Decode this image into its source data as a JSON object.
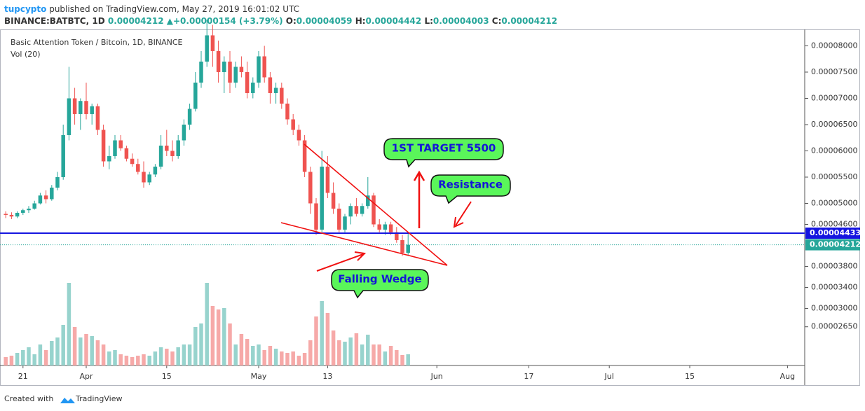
{
  "header": {
    "author": "tupcypto",
    "published": "published on TradingView.com, May 27, 2019 16:01:02 UTC",
    "symbol": "BINANCE:BATBTC, 1D",
    "last": "0.00004212",
    "arrow": "▲",
    "change": "+0.00000154 (+3.79%)",
    "o_label": "O:",
    "o": "0.00004059",
    "h_label": "H:",
    "h": "0.00004442",
    "l_label": "L:",
    "l": "0.00004003",
    "c_label": "C:",
    "c": "0.00004212"
  },
  "footer": {
    "text": "Created with",
    "brand": "TradingView"
  },
  "chart_data": {
    "type": "candlestick",
    "title": "Basic Attention Token / Bitcoin, 1D, BINANCE",
    "volume_title": "Vol (20)",
    "x": [
      "2019-03-18",
      "2019-03-19",
      "2019-03-20",
      "2019-03-21",
      "2019-03-22",
      "2019-03-23",
      "2019-03-24",
      "2019-03-25",
      "2019-03-26",
      "2019-03-27",
      "2019-03-28",
      "2019-03-29",
      "2019-03-30",
      "2019-03-31",
      "2019-04-01",
      "2019-04-02",
      "2019-04-03",
      "2019-04-04",
      "2019-04-05",
      "2019-04-06",
      "2019-04-07",
      "2019-04-08",
      "2019-04-09",
      "2019-04-10",
      "2019-04-11",
      "2019-04-12",
      "2019-04-13",
      "2019-04-14",
      "2019-04-15",
      "2019-04-16",
      "2019-04-17",
      "2019-04-18",
      "2019-04-19",
      "2019-04-20",
      "2019-04-21",
      "2019-04-22",
      "2019-04-23",
      "2019-04-24",
      "2019-04-25",
      "2019-04-26",
      "2019-04-27",
      "2019-04-28",
      "2019-04-29",
      "2019-04-30",
      "2019-05-01",
      "2019-05-02",
      "2019-05-03",
      "2019-05-04",
      "2019-05-05",
      "2019-05-06",
      "2019-05-07",
      "2019-05-08",
      "2019-05-09",
      "2019-05-10",
      "2019-05-11",
      "2019-05-12",
      "2019-05-13",
      "2019-05-14",
      "2019-05-15",
      "2019-05-16",
      "2019-05-17",
      "2019-05-18",
      "2019-05-19",
      "2019-05-20",
      "2019-05-21",
      "2019-05-22",
      "2019-05-23",
      "2019-05-24",
      "2019-05-25",
      "2019-05-26",
      "2019-05-27"
    ],
    "open": [
      4.8e-05,
      4.78e-05,
      4.75e-05,
      4.82e-05,
      4.87e-05,
      4.9e-05,
      5e-05,
      5.15e-05,
      5.08e-05,
      5.3e-05,
      5.5e-05,
      6.3e-05,
      7e-05,
      6.7e-05,
      6.95e-05,
      6.7e-05,
      6.85e-05,
      6.4e-05,
      5.8e-05,
      5.9e-05,
      6.2e-05,
      6.05e-05,
      5.85e-05,
      5.75e-05,
      5.6e-05,
      5.4e-05,
      5.55e-05,
      5.7e-05,
      6.1e-05,
      6e-05,
      5.9e-05,
      6.2e-05,
      6.5e-05,
      6.8e-05,
      7.3e-05,
      7.7e-05,
      8.2e-05,
      7.9e-05,
      7.5e-05,
      7.7e-05,
      7.3e-05,
      7.6e-05,
      7.5e-05,
      7.1e-05,
      7.3e-05,
      7.8e-05,
      7.4e-05,
      7.1e-05,
      7.2e-05,
      6.9e-05,
      6.6e-05,
      6.4e-05,
      6.2e-05,
      5.6e-05,
      5e-05,
      4.5e-05,
      5.7e-05,
      5.2e-05,
      4.9e-05,
      4.5e-05,
      4.75e-05,
      4.95e-05,
      4.8e-05,
      4.95e-05,
      5.15e-05,
      4.6e-05,
      4.5e-05,
      4.6e-05,
      4.45e-05,
      4.3e-05,
      4.059e-05
    ],
    "high": [
      4.85e-05,
      4.83e-05,
      4.85e-05,
      4.9e-05,
      4.95e-05,
      5.05e-05,
      5.2e-05,
      5.25e-05,
      5.35e-05,
      5.6e-05,
      6.5e-05,
      7.6e-05,
      7.2e-05,
      7e-05,
      7.3e-05,
      6.9e-05,
      6.9e-05,
      6.5e-05,
      6.1e-05,
      6.3e-05,
      6.3e-05,
      6.1e-05,
      5.95e-05,
      5.85e-05,
      5.8e-05,
      5.6e-05,
      5.75e-05,
      6.3e-05,
      6.4e-05,
      6.2e-05,
      6.3e-05,
      6.6e-05,
      6.9e-05,
      7.5e-05,
      7.9e-05,
      8.5e-05,
      8.4e-05,
      8.1e-05,
      7.8e-05,
      7.9e-05,
      7.7e-05,
      7.8e-05,
      7.7e-05,
      7.4e-05,
      7.9e-05,
      8e-05,
      7.5e-05,
      7.3e-05,
      7.3e-05,
      7e-05,
      6.7e-05,
      6.5e-05,
      6.3e-05,
      5.7e-05,
      5.1e-05,
      6e-05,
      5.9e-05,
      5.4e-05,
      5e-05,
      4.8e-05,
      5e-05,
      5.1e-05,
      5e-05,
      5.5e-05,
      5.2e-05,
      4.7e-05,
      4.65e-05,
      4.65e-05,
      4.55e-05,
      4.4e-05,
      4.442e-05
    ],
    "low": [
      4.72e-05,
      4.7e-05,
      4.72e-05,
      4.78e-05,
      4.82e-05,
      4.88e-05,
      4.98e-05,
      5e-05,
      5.05e-05,
      5.25e-05,
      5.45e-05,
      6.2e-05,
      6.5e-05,
      6.4e-05,
      6.6e-05,
      6.5e-05,
      6.3e-05,
      5.7e-05,
      5.65e-05,
      5.85e-05,
      6e-05,
      5.8e-05,
      5.7e-05,
      5.55e-05,
      5.3e-05,
      5.35e-05,
      5.5e-05,
      5.65e-05,
      5.9e-05,
      5.8e-05,
      5.85e-05,
      6.1e-05,
      6.4e-05,
      6.75e-05,
      7.2e-05,
      7.6e-05,
      7.6e-05,
      7.3e-05,
      7.1e-05,
      7.1e-05,
      7.2e-05,
      7.4e-05,
      7e-05,
      7e-05,
      7.2e-05,
      7.3e-05,
      6.9e-05,
      6.9e-05,
      6.8e-05,
      6.5e-05,
      6.3e-05,
      6.1e-05,
      5.5e-05,
      4.8e-05,
      4.4e-05,
      4.45e-05,
      5.1e-05,
      4.8e-05,
      4.45e-05,
      4.45e-05,
      4.6e-05,
      4.75e-05,
      4.75e-05,
      4.9e-05,
      4.55e-05,
      4.45e-05,
      4.4e-05,
      4.4e-05,
      4.25e-05,
      4e-05,
      4.003e-05
    ],
    "close": [
      4.78e-05,
      4.75e-05,
      4.82e-05,
      4.87e-05,
      4.9e-05,
      5e-05,
      5.15e-05,
      5.08e-05,
      5.3e-05,
      5.5e-05,
      6.3e-05,
      7e-05,
      6.7e-05,
      6.95e-05,
      6.7e-05,
      6.85e-05,
      6.4e-05,
      5.8e-05,
      5.9e-05,
      6.2e-05,
      6.05e-05,
      5.85e-05,
      5.75e-05,
      5.6e-05,
      5.4e-05,
      5.55e-05,
      5.7e-05,
      6.1e-05,
      6e-05,
      5.9e-05,
      6.2e-05,
      6.5e-05,
      6.8e-05,
      7.3e-05,
      7.7e-05,
      8.2e-05,
      7.9e-05,
      7.5e-05,
      7.7e-05,
      7.3e-05,
      7.6e-05,
      7.5e-05,
      7.1e-05,
      7.3e-05,
      7.8e-05,
      7.4e-05,
      7.1e-05,
      7.2e-05,
      6.9e-05,
      6.6e-05,
      6.4e-05,
      6.2e-05,
      5.6e-05,
      5e-05,
      4.5e-05,
      5.7e-05,
      5.2e-05,
      4.9e-05,
      4.5e-05,
      4.75e-05,
      4.95e-05,
      4.8e-05,
      4.95e-05,
      5.15e-05,
      4.6e-05,
      4.5e-05,
      4.6e-05,
      4.45e-05,
      4.3e-05,
      4.059e-05,
      4.212e-05
    ],
    "volume": [
      12,
      14,
      18,
      22,
      26,
      16,
      30,
      22,
      35,
      40,
      58,
      118,
      55,
      40,
      45,
      42,
      36,
      30,
      20,
      22,
      16,
      14,
      12,
      14,
      16,
      14,
      20,
      26,
      24,
      20,
      26,
      30,
      30,
      55,
      60,
      118,
      85,
      80,
      82,
      60,
      30,
      45,
      38,
      28,
      30,
      22,
      28,
      24,
      20,
      18,
      20,
      14,
      18,
      36,
      70,
      92,
      75,
      50,
      36,
      34,
      40,
      46,
      30,
      44,
      30,
      30,
      20,
      28,
      22,
      15,
      16
    ],
    "up_color": "#26a69a",
    "down_color": "#ef5350",
    "volume_up_color": "#97d3cd",
    "volume_down_color": "#f6a9a8",
    "xlim": [
      "2019-03-17",
      "2019-08-04"
    ],
    "xticks": [
      {
        "value": "2019-03-21",
        "label": "21"
      },
      {
        "value": "2019-04-01",
        "label": "Apr"
      },
      {
        "value": "2019-04-15",
        "label": "15"
      },
      {
        "value": "2019-05-01",
        "label": "May"
      },
      {
        "value": "2019-05-13",
        "label": "13"
      },
      {
        "value": "2019-06-01",
        "label": "Jun"
      },
      {
        "value": "2019-06-17",
        "label": "17"
      },
      {
        "value": "2019-07-01",
        "label": "Jul"
      },
      {
        "value": "2019-07-15",
        "label": "15"
      },
      {
        "value": "2019-08-01",
        "label": "Aug"
      }
    ],
    "ylim": [
      1.913e-05,
      8.313e-05
    ],
    "yticks": [
      {
        "value": 8e-05,
        "label": "0.00008000"
      },
      {
        "value": 7.5e-05,
        "label": "0.00007500"
      },
      {
        "value": 7e-05,
        "label": "0.00007000"
      },
      {
        "value": 6.5e-05,
        "label": "0.00006500"
      },
      {
        "value": 6e-05,
        "label": "0.00006000"
      },
      {
        "value": 5.5e-05,
        "label": "0.00005500"
      },
      {
        "value": 5e-05,
        "label": "0.00005000"
      },
      {
        "value": 4.6e-05,
        "label": "0.00004600"
      },
      {
        "value": 3.8e-05,
        "label": "0.00003800"
      },
      {
        "value": 3.4e-05,
        "label": "0.00003400"
      },
      {
        "value": 3e-05,
        "label": "0.00003000"
      },
      {
        "value": 2.65e-05,
        "label": "0.00002650"
      }
    ],
    "hlines": [
      {
        "value": 4.433e-05,
        "label": "0.00004433",
        "color": "#1515e0",
        "style": "solid"
      },
      {
        "value": 4.212e-05,
        "label": "0.00004212",
        "color": "#26a69a",
        "style": "dotted"
      }
    ],
    "annotations": [
      "1ST TARGET 5500",
      "Resistance",
      "Falling Wedge"
    ]
  }
}
